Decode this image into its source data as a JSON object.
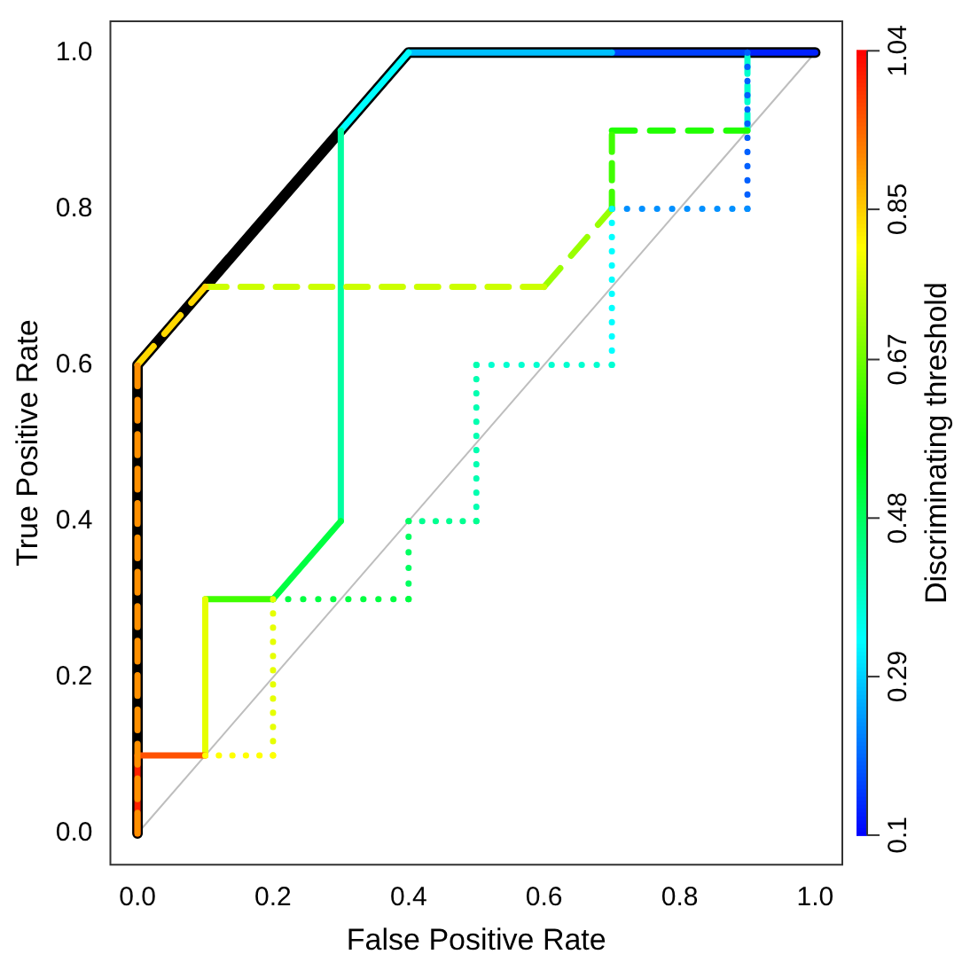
{
  "chart_data": {
    "type": "line",
    "xlabel": "False Positive Rate",
    "ylabel": "True Positive Rate",
    "clabel": "Discriminating threshold",
    "xlim": [
      -0.04,
      1.04
    ],
    "ylim": [
      -0.04,
      1.04
    ],
    "xticks": [
      {
        "value": 0,
        "label": "0.0"
      },
      {
        "value": 0.2,
        "label": "0.2"
      },
      {
        "value": 0.4,
        "label": "0.4"
      },
      {
        "value": 0.6,
        "label": "0.6"
      },
      {
        "value": 0.8,
        "label": "0.8"
      },
      {
        "value": 1,
        "label": "1.0"
      }
    ],
    "yticks": [
      {
        "value": 0,
        "label": "0.0"
      },
      {
        "value": 0.2,
        "label": "0.2"
      },
      {
        "value": 0.4,
        "label": "0.4"
      },
      {
        "value": 0.6,
        "label": "0.6"
      },
      {
        "value": 0.8,
        "label": "0.8"
      },
      {
        "value": 1,
        "label": "1.0"
      }
    ],
    "clim": [
      0.1,
      1.04
    ],
    "cticks": [
      0.1,
      0.29,
      0.48,
      0.67,
      0.85,
      1.04
    ],
    "series": [
      {
        "color": "#bebebe",
        "line_style": "solid",
        "x": [
          0,
          1
        ],
        "values": [
          0,
          1
        ]
      },
      {
        "color": "#000000",
        "line_style": "solid",
        "x": [
          0,
          0,
          0.4,
          1
        ],
        "values": [
          0,
          0.6,
          1,
          1
        ]
      },
      {
        "color": "#ff2100",
        "line_style": "solid",
        "x": [
          0,
          0
        ],
        "values": [
          0,
          0.1
        ]
      },
      {
        "color": "#ff5100",
        "line_style": "solid",
        "x": [
          0,
          0.1
        ],
        "values": [
          0.1,
          0.1
        ]
      },
      {
        "color": "#e6ff00",
        "line_style": "solid",
        "x": [
          0.1,
          0.1
        ],
        "values": [
          0.1,
          0.3
        ]
      },
      {
        "color": "#40ff00",
        "line_style": "solid",
        "x": [
          0.1,
          0.2
        ],
        "values": [
          0.3,
          0.3
        ]
      },
      {
        "color": "#00ff40",
        "line_style": "solid",
        "x": [
          0.2,
          0.3
        ],
        "values": [
          0.3,
          0.4
        ]
      },
      {
        "color": "#00ffa0",
        "line_style": "solid",
        "x": [
          0.3,
          0.3
        ],
        "values": [
          0.4,
          0.9
        ]
      },
      {
        "color": "#00ffff",
        "line_style": "solid",
        "x": [
          0.3,
          0.4
        ],
        "values": [
          0.9,
          1
        ]
      },
      {
        "color": "#00c0ff",
        "line_style": "solid",
        "x": [
          0.4,
          0.7
        ],
        "values": [
          1,
          1
        ]
      },
      {
        "color": "#0040ff",
        "line_style": "solid",
        "x": [
          0.7,
          0.9
        ],
        "values": [
          1,
          1
        ]
      },
      {
        "color": "#0020ff",
        "line_style": "solid",
        "x": [
          0.9,
          1
        ],
        "values": [
          1,
          1
        ]
      },
      {
        "color": "#ff9000",
        "line_style": "dashed",
        "x": [
          0,
          0
        ],
        "values": [
          0,
          0.6
        ]
      },
      {
        "color": "#ffd800",
        "line_style": "dashed",
        "x": [
          0,
          0.1
        ],
        "values": [
          0.6,
          0.7
        ]
      },
      {
        "color": "#ccff00",
        "line_style": "dashed",
        "x": [
          0.1,
          0.6
        ],
        "values": [
          0.7,
          0.7
        ]
      },
      {
        "color": "#99ff00",
        "line_style": "dashed",
        "x": [
          0.6,
          0.7
        ],
        "values": [
          0.7,
          0.8
        ]
      },
      {
        "color": "#40ff00",
        "line_style": "dashed",
        "x": [
          0.7,
          0.7
        ],
        "values": [
          0.8,
          0.9
        ]
      },
      {
        "color": "#20ff00",
        "line_style": "dashed",
        "x": [
          0.7,
          0.9
        ],
        "values": [
          0.9,
          0.9
        ]
      },
      {
        "color": "#00ffd0",
        "line_style": "dashed",
        "x": [
          0.9,
          0.9
        ],
        "values": [
          0.9,
          1
        ]
      },
      {
        "color": "#ffff00",
        "line_style": "dotted",
        "x": [
          0.1,
          0.2
        ],
        "values": [
          0.1,
          0.1
        ]
      },
      {
        "color": "#e6ff00",
        "line_style": "dotted",
        "x": [
          0.2,
          0.2
        ],
        "values": [
          0.1,
          0.3
        ]
      },
      {
        "color": "#00ff40",
        "line_style": "dotted",
        "x": [
          0.2,
          0.4
        ],
        "values": [
          0.3,
          0.3
        ]
      },
      {
        "color": "#00ff60",
        "line_style": "dotted",
        "x": [
          0.4,
          0.4
        ],
        "values": [
          0.3,
          0.4
        ]
      },
      {
        "color": "#00ff90",
        "line_style": "dotted",
        "x": [
          0.4,
          0.5
        ],
        "values": [
          0.4,
          0.4
        ]
      },
      {
        "color": "#00ffb0",
        "line_style": "dotted",
        "x": [
          0.5,
          0.5
        ],
        "values": [
          0.4,
          0.6
        ]
      },
      {
        "color": "#00ffd0",
        "line_style": "dotted",
        "x": [
          0.5,
          0.7
        ],
        "values": [
          0.6,
          0.6
        ]
      },
      {
        "color": "#00ffff",
        "line_style": "dotted",
        "x": [
          0.7,
          0.7
        ],
        "values": [
          0.6,
          0.8
        ]
      },
      {
        "color": "#0090ff",
        "line_style": "dotted",
        "x": [
          0.7,
          0.9
        ],
        "values": [
          0.8,
          0.8
        ]
      },
      {
        "color": "#0060ff",
        "line_style": "dotted",
        "x": [
          0.9,
          0.9
        ],
        "values": [
          0.8,
          1
        ]
      }
    ]
  }
}
